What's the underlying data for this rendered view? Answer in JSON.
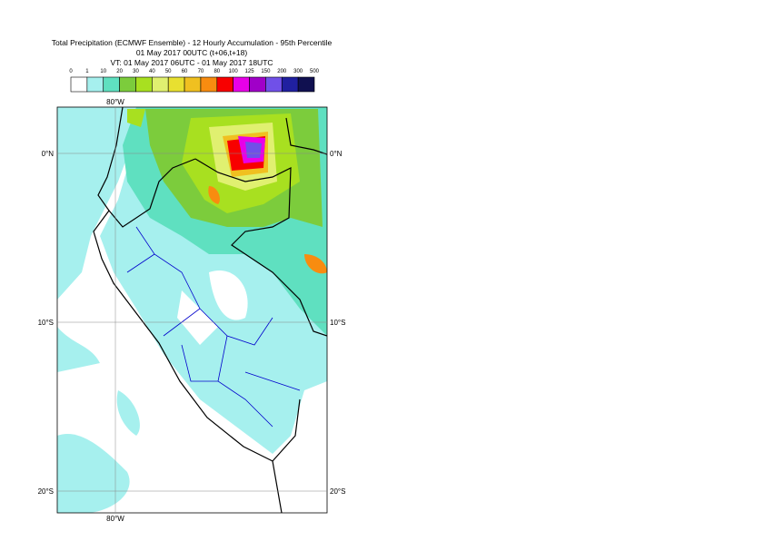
{
  "header": {
    "title": "Total Precipitation (ECMWF Ensemble) - 12 Hourly Accumulation - 95th Percentile",
    "line2": "01 May 2017 00UTC (t+06,t+18)",
    "line3": "VT: 01 May 2017 06UTC - 01 May 2017 18UTC"
  },
  "legend": {
    "levels": [
      "0",
      "1",
      "10",
      "20",
      "30",
      "40",
      "50",
      "60",
      "70",
      "80",
      "100",
      "125",
      "150",
      "200",
      "300",
      "500"
    ],
    "colors": [
      "#ffffff",
      "#a6f0ee",
      "#5fe0c0",
      "#7ccc3c",
      "#a8e020",
      "#e0f070",
      "#e8e030",
      "#f0c020",
      "#f88c10",
      "#f80000",
      "#e800e8",
      "#a000c8",
      "#7050e8",
      "#2020a0",
      "#101050"
    ]
  },
  "map": {
    "lon_label": "80°W",
    "lat_labels": [
      "0°N",
      "10°S",
      "20°S"
    ]
  }
}
